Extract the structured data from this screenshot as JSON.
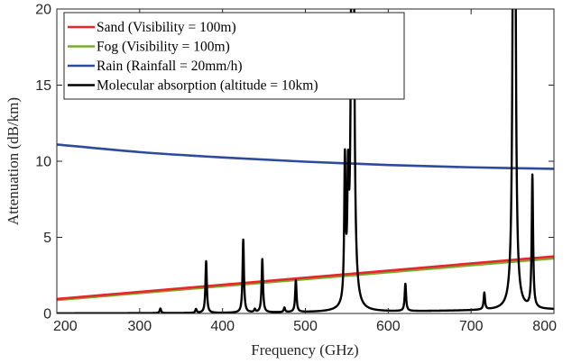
{
  "chart_data": {
    "type": "line",
    "xlabel": "Frequency (GHz)",
    "ylabel": "Attenuation (dB/km)",
    "xlim": [
      200,
      800
    ],
    "ylim": [
      0,
      20
    ],
    "x_ticks": [
      "200",
      "300",
      "400",
      "500",
      "600",
      "700",
      "800"
    ],
    "y_ticks": [
      "0",
      "5",
      "10",
      "15",
      "20"
    ],
    "grid": false,
    "legend_position": "top-left",
    "series": [
      {
        "name": "Sand (Visibility = 100m)",
        "color": "#e8262a",
        "x": [
          200,
          800
        ],
        "values": [
          0.95,
          3.75
        ]
      },
      {
        "name": "Fog (Visibility = 100m)",
        "color": "#77ac30",
        "x": [
          200,
          800
        ],
        "values": [
          0.88,
          3.62
        ]
      },
      {
        "name": "Rain (Rainfall = 20mm/h)",
        "color": "#2e4a9c",
        "x": [
          200,
          300,
          400,
          500,
          600,
          700,
          800
        ],
        "values": [
          11.1,
          10.6,
          10.25,
          9.97,
          9.75,
          9.6,
          9.5
        ]
      },
      {
        "name": "Molecular absorption (altitude = 10km)",
        "color": "#000000",
        "baseline": [
          [
            200,
            0.01
          ],
          [
            400,
            0.03
          ],
          [
            600,
            0.12
          ],
          [
            800,
            0.25
          ]
        ],
        "peaks": [
          {
            "x": 325,
            "peak": 0.3
          },
          {
            "x": 368,
            "peak": 0.25
          },
          {
            "x": 380.2,
            "peak": 3.4
          },
          {
            "x": 425,
            "peak": 4.8
          },
          {
            "x": 439,
            "peak": 0.2
          },
          {
            "x": 448,
            "peak": 3.5
          },
          {
            "x": 474.7,
            "peak": 0.3
          },
          {
            "x": 488.5,
            "peak": 2.1
          },
          {
            "x": 547.7,
            "peak": 9.2
          },
          {
            "x": 551.5,
            "peak": 7.0
          },
          {
            "x": 557,
            "peak": 100
          },
          {
            "x": 620.7,
            "peak": 1.8
          },
          {
            "x": 716,
            "peak": 1.1
          },
          {
            "x": 752,
            "peak": 100
          },
          {
            "x": 774,
            "peak": 8.7
          }
        ]
      }
    ]
  }
}
